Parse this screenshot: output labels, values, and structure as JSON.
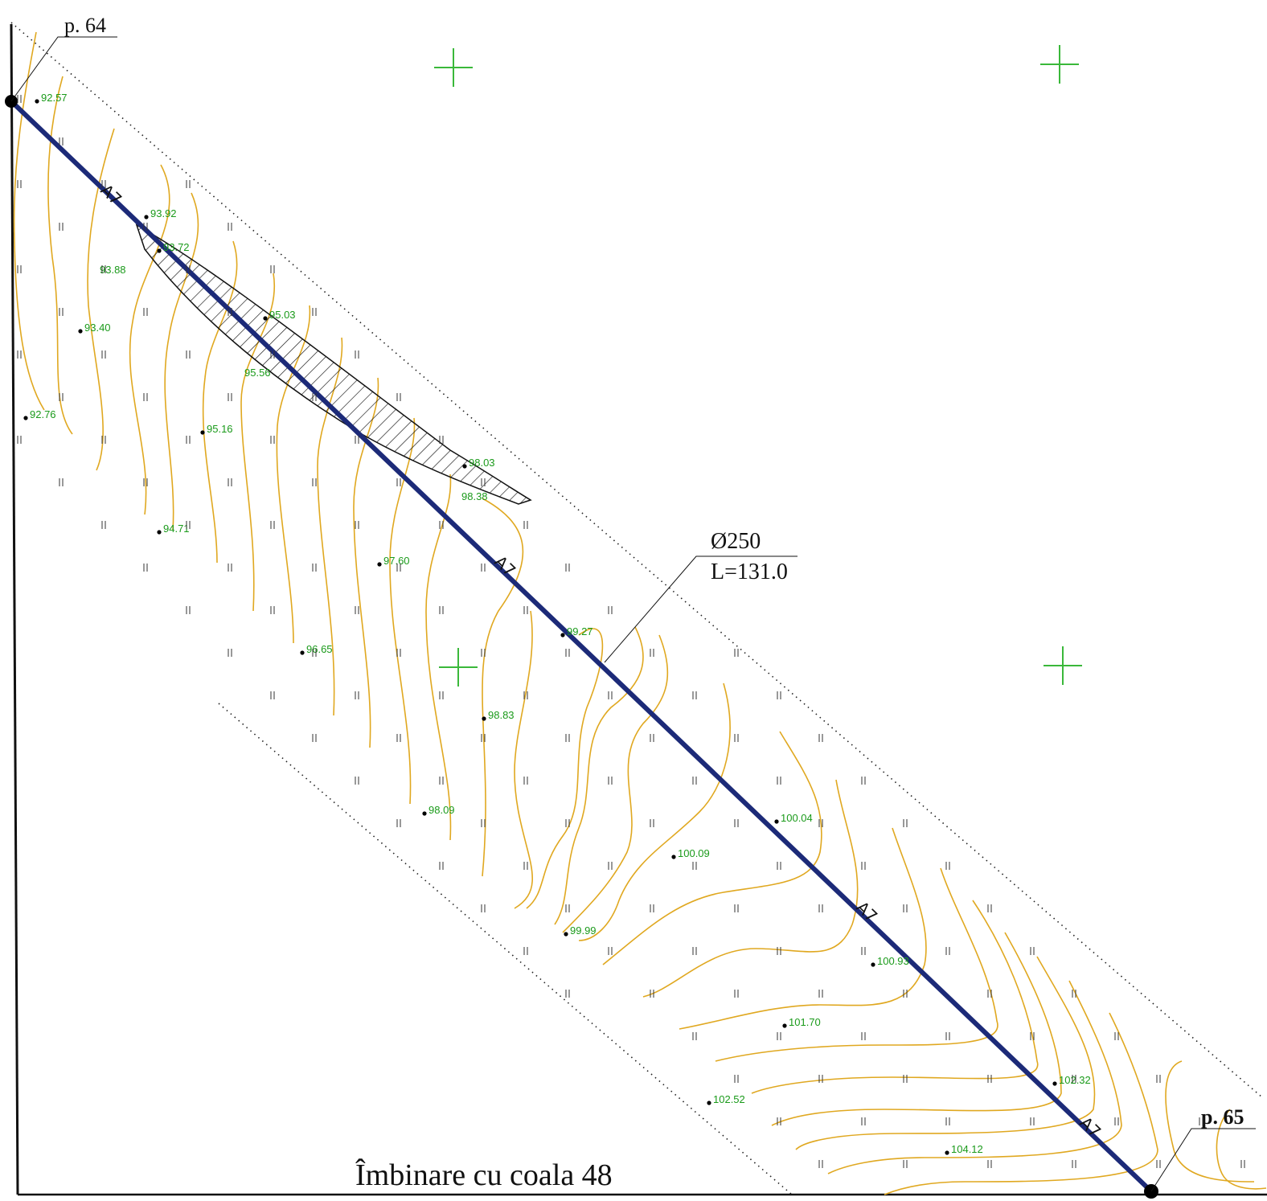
{
  "page": {
    "bottom_caption": "Îmbinare cu coala 48"
  },
  "colors": {
    "pipe": "#1c2a78",
    "contour": "#e0a820",
    "elevation_text": "#1a9a1a",
    "grid_cross": "#3ab83a",
    "line": "#111111"
  },
  "points": [
    {
      "id": "p64",
      "label": "p. 64"
    },
    {
      "id": "p65",
      "label": "p. 65"
    }
  ],
  "pipe": {
    "segment_label": "A7",
    "diameter": "Ø250",
    "length": "L=131.0"
  },
  "elevations": [
    {
      "text": "92.57"
    },
    {
      "text": "93.92"
    },
    {
      "text": "93.72"
    },
    {
      "text": "93.88"
    },
    {
      "text": "93.40"
    },
    {
      "text": "95.03"
    },
    {
      "text": "95.56"
    },
    {
      "text": "92.76"
    },
    {
      "text": "95.16"
    },
    {
      "text": "98.03"
    },
    {
      "text": "98.38"
    },
    {
      "text": "94.71"
    },
    {
      "text": "97.60"
    },
    {
      "text": "99.27"
    },
    {
      "text": "96.65"
    },
    {
      "text": "98.83"
    },
    {
      "text": "98.09"
    },
    {
      "text": "100.04"
    },
    {
      "text": "100.09"
    },
    {
      "text": "99.99"
    },
    {
      "text": "100.93"
    },
    {
      "text": "101.70"
    },
    {
      "text": "102.32"
    },
    {
      "text": "102.52"
    },
    {
      "text": "104.12"
    }
  ]
}
